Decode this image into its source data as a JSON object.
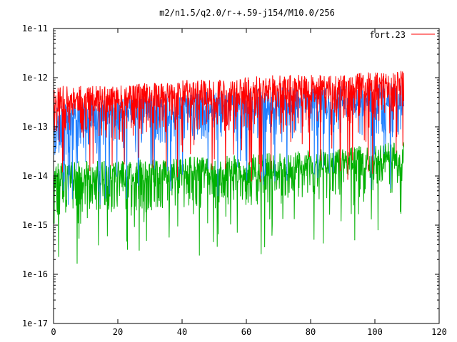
{
  "chart_data": {
    "type": "line",
    "title": "m2/n1.5/q2.0/r-+.59-j154/M10.0/256",
    "xlabel": "",
    "ylabel": "",
    "xlim": [
      0,
      120
    ],
    "ylim": [
      1e-17,
      1e-11
    ],
    "y_scale": "log",
    "x_ticks": [
      0,
      20,
      40,
      60,
      80,
      100,
      120
    ],
    "x_tick_labels": [
      "0",
      "20",
      "40",
      "60",
      "80",
      "100",
      "120"
    ],
    "y_ticks": [
      1e-17,
      1e-16,
      1e-15,
      1e-14,
      1e-13,
      1e-12,
      1e-11
    ],
    "y_tick_labels": [
      "1e-17",
      "1e-16",
      "1e-15",
      "1e-14",
      "1e-13",
      "1e-12",
      "1e-11"
    ],
    "grid": false,
    "legend_position": "top-right",
    "legend": [
      {
        "label": "fort.23",
        "color": "#ff0000"
      }
    ],
    "series": [
      {
        "name": "fort.23",
        "color": "#ff0000",
        "x_range": [
          0,
          109
        ],
        "anchors_x": [
          0,
          10,
          20,
          30,
          40,
          50,
          60,
          70,
          80,
          90,
          100,
          109
        ],
        "anchors_y": [
          3e-13,
          3e-13,
          3e-13,
          3.5e-13,
          4e-13,
          4e-13,
          4.5e-13,
          5e-13,
          5e-13,
          5e-13,
          6e-13,
          6e-13
        ]
      },
      {
        "color": "#1f7fff",
        "x_range": [
          0,
          109
        ],
        "anchors_x": [
          0,
          10,
          20,
          30,
          40,
          50,
          60,
          70,
          80,
          90,
          100,
          109
        ],
        "anchors_y": [
          1.2e-13,
          1.5e-13,
          1.8e-13,
          2e-13,
          2.2e-13,
          2.3e-13,
          2.5e-13,
          2.8e-13,
          3e-13,
          3e-13,
          3.3e-13,
          3.5e-13
        ]
      },
      {
        "color": "#00b000",
        "x_range": [
          0,
          109
        ],
        "anchors_x": [
          0,
          10,
          20,
          30,
          40,
          50,
          60,
          70,
          80,
          90,
          100,
          109
        ],
        "anchors_y": [
          8e-15,
          9e-15,
          9e-15,
          1e-14,
          1.1e-14,
          1.1e-14,
          1.2e-14,
          1.4e-14,
          1.5e-14,
          1.7e-14,
          2e-14,
          2.2e-14
        ]
      }
    ]
  }
}
